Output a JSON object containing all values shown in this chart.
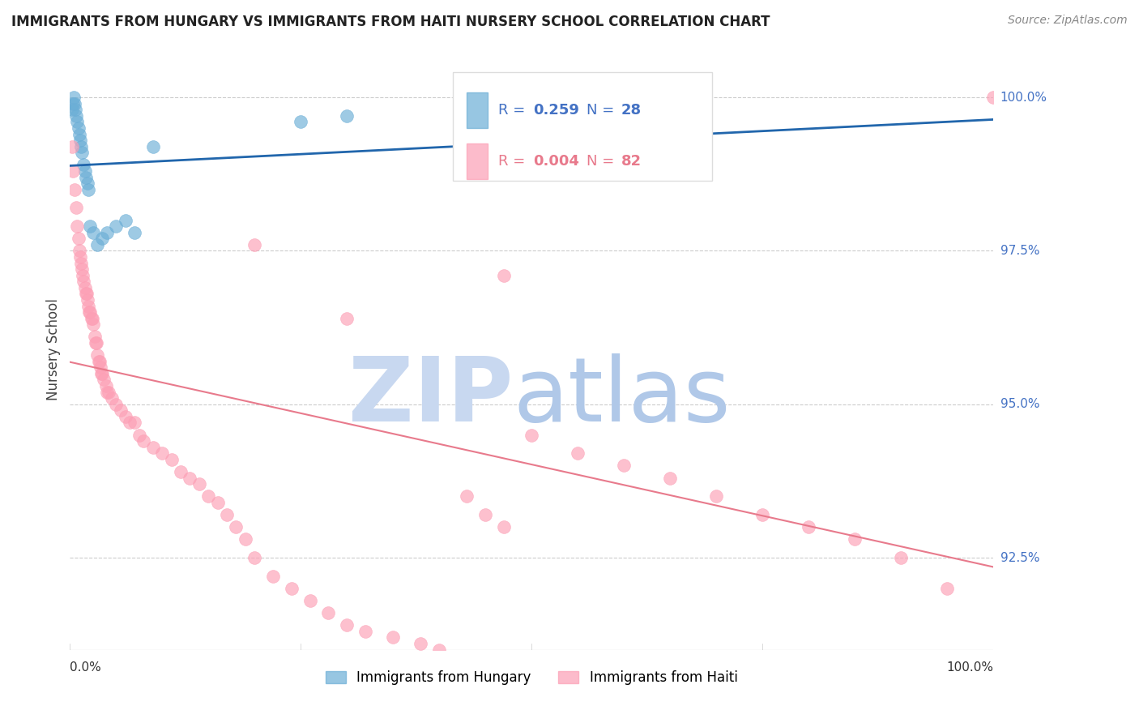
{
  "title": "IMMIGRANTS FROM HUNGARY VS IMMIGRANTS FROM HAITI NURSERY SCHOOL CORRELATION CHART",
  "source": "Source: ZipAtlas.com",
  "ylabel": "Nursery School",
  "xlim": [
    0.0,
    100.0
  ],
  "ylim": [
    91.0,
    100.8
  ],
  "legend_hungary_r": "R = ",
  "legend_hungary_rv": "0.259",
  "legend_hungary_n": "N = ",
  "legend_hungary_nv": "28",
  "legend_haiti_r": "R = ",
  "legend_haiti_rv": "0.004",
  "legend_haiti_n": "N = ",
  "legend_haiti_nv": "82",
  "hungary_color": "#6baed6",
  "haiti_color": "#fc9fb5",
  "hungary_line_color": "#2166ac",
  "haiti_line_color": "#e87a8c",
  "watermark_zip_color": "#c8d8f0",
  "watermark_atlas_color": "#b0c8e8",
  "grid_color": "#cccccc",
  "right_label_color": "#4472c4",
  "title_color": "#222222",
  "source_color": "#888888",
  "ylabel_color": "#444444",
  "hungary_x": [
    0.2,
    0.3,
    0.4,
    0.5,
    0.6,
    0.7,
    0.8,
    0.9,
    1.0,
    1.1,
    1.2,
    1.3,
    1.5,
    1.6,
    1.7,
    1.9,
    2.0,
    2.2,
    2.5,
    3.0,
    3.5,
    4.0,
    5.0,
    6.0,
    7.0,
    9.0,
    25.0,
    30.0
  ],
  "hungary_y": [
    99.8,
    99.9,
    100.0,
    99.9,
    99.8,
    99.7,
    99.6,
    99.5,
    99.4,
    99.3,
    99.2,
    99.1,
    98.9,
    98.8,
    98.7,
    98.6,
    98.5,
    97.9,
    97.8,
    97.6,
    97.7,
    97.8,
    97.9,
    98.0,
    97.8,
    99.2,
    99.6,
    99.7
  ],
  "haiti_x": [
    0.2,
    0.3,
    0.5,
    0.7,
    0.8,
    0.9,
    1.0,
    1.1,
    1.2,
    1.3,
    1.4,
    1.5,
    1.6,
    1.7,
    1.8,
    1.9,
    2.0,
    2.1,
    2.2,
    2.3,
    2.4,
    2.5,
    2.7,
    2.8,
    2.9,
    3.0,
    3.1,
    3.2,
    3.3,
    3.4,
    3.5,
    3.7,
    3.9,
    4.0,
    4.2,
    4.5,
    5.0,
    5.5,
    6.0,
    6.5,
    7.0,
    7.5,
    8.0,
    9.0,
    10.0,
    11.0,
    12.0,
    13.0,
    14.0,
    15.0,
    16.0,
    17.0,
    18.0,
    19.0,
    20.0,
    22.0,
    24.0,
    26.0,
    28.0,
    30.0,
    32.0,
    35.0,
    38.0,
    40.0,
    43.0,
    45.0,
    47.0,
    50.0,
    55.0,
    60.0,
    65.0,
    70.0,
    75.0,
    80.0,
    85.0,
    90.0,
    95.0,
    47.0,
    100.0,
    55.0,
    30.0,
    20.0
  ],
  "haiti_y": [
    99.2,
    98.8,
    98.5,
    98.2,
    97.9,
    97.7,
    97.5,
    97.4,
    97.3,
    97.2,
    97.1,
    97.0,
    96.9,
    96.8,
    96.8,
    96.7,
    96.6,
    96.5,
    96.5,
    96.4,
    96.4,
    96.3,
    96.1,
    96.0,
    96.0,
    95.8,
    95.7,
    95.7,
    95.6,
    95.5,
    95.5,
    95.4,
    95.3,
    95.2,
    95.2,
    95.1,
    95.0,
    94.9,
    94.8,
    94.7,
    94.7,
    94.5,
    94.4,
    94.3,
    94.2,
    94.1,
    93.9,
    93.8,
    93.7,
    93.5,
    93.4,
    93.2,
    93.0,
    92.8,
    92.5,
    92.2,
    92.0,
    91.8,
    91.6,
    91.4,
    91.3,
    91.2,
    91.1,
    91.0,
    93.5,
    93.2,
    93.0,
    94.5,
    94.2,
    94.0,
    93.8,
    93.5,
    93.2,
    93.0,
    92.8,
    92.5,
    92.0,
    97.1,
    100.0,
    99.0,
    96.4,
    97.6
  ],
  "ytick_vals": [
    92.5,
    95.0,
    97.5,
    100.0
  ],
  "ytick_labels": [
    "92.5%",
    "95.0%",
    "97.5%",
    "100.0%"
  ],
  "bottom_legend_hungary": "Immigrants from Hungary",
  "bottom_legend_haiti": "Immigrants from Haiti"
}
